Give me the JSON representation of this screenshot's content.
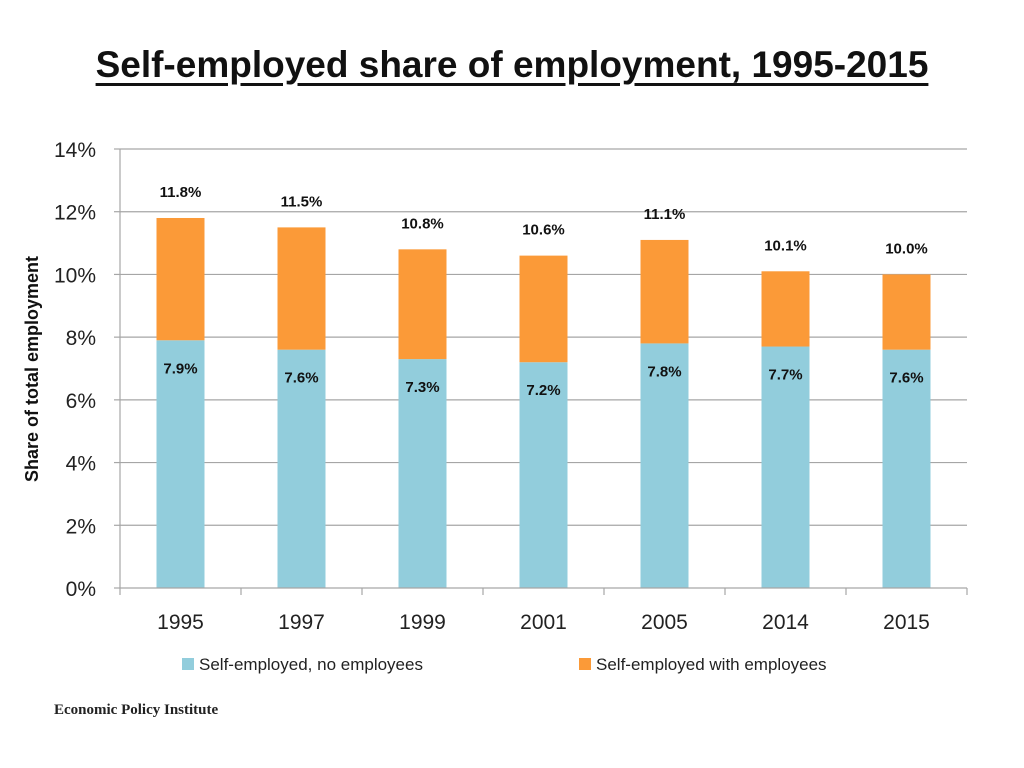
{
  "title": "Self-employed share of employment, 1995-2015",
  "source": "Economic Policy Institute",
  "colors": {
    "no_employees": "#92CDDC",
    "with_employees": "#FB9A38",
    "grid": "#A6A6A6",
    "axis": "#A6A6A6",
    "text": "#222222"
  },
  "chart_data": {
    "type": "bar",
    "stacked": true,
    "title": "",
    "xlabel": "",
    "ylabel": "Share of total employment",
    "categories": [
      "1995",
      "1997",
      "1999",
      "2001",
      "2005",
      "2014",
      "2015"
    ],
    "series": [
      {
        "name": "Self-employed, no employees",
        "values": [
          7.9,
          7.6,
          7.3,
          7.2,
          7.8,
          7.7,
          7.6
        ],
        "labels": [
          "7.9%",
          "7.6%",
          "7.3%",
          "7.2%",
          "7.8%",
          "7.7%",
          "7.6%"
        ]
      },
      {
        "name": "Self-employed with employees",
        "values": [
          3.9,
          3.9,
          3.5,
          3.4,
          3.3,
          2.4,
          2.4
        ]
      }
    ],
    "totals": [
      11.8,
      11.5,
      10.8,
      10.6,
      11.1,
      10.1,
      10.0
    ],
    "total_labels": [
      "11.8%",
      "11.5%",
      "10.8%",
      "10.6%",
      "11.1%",
      "10.1%",
      "10.0%"
    ],
    "ylim": [
      0,
      14
    ],
    "yticks": [
      0,
      2,
      4,
      6,
      8,
      10,
      12,
      14
    ],
    "ytick_labels": [
      "0%",
      "2%",
      "4%",
      "6%",
      "8%",
      "10%",
      "12%",
      "14%"
    ],
    "grid": true,
    "legend": "bottom"
  }
}
